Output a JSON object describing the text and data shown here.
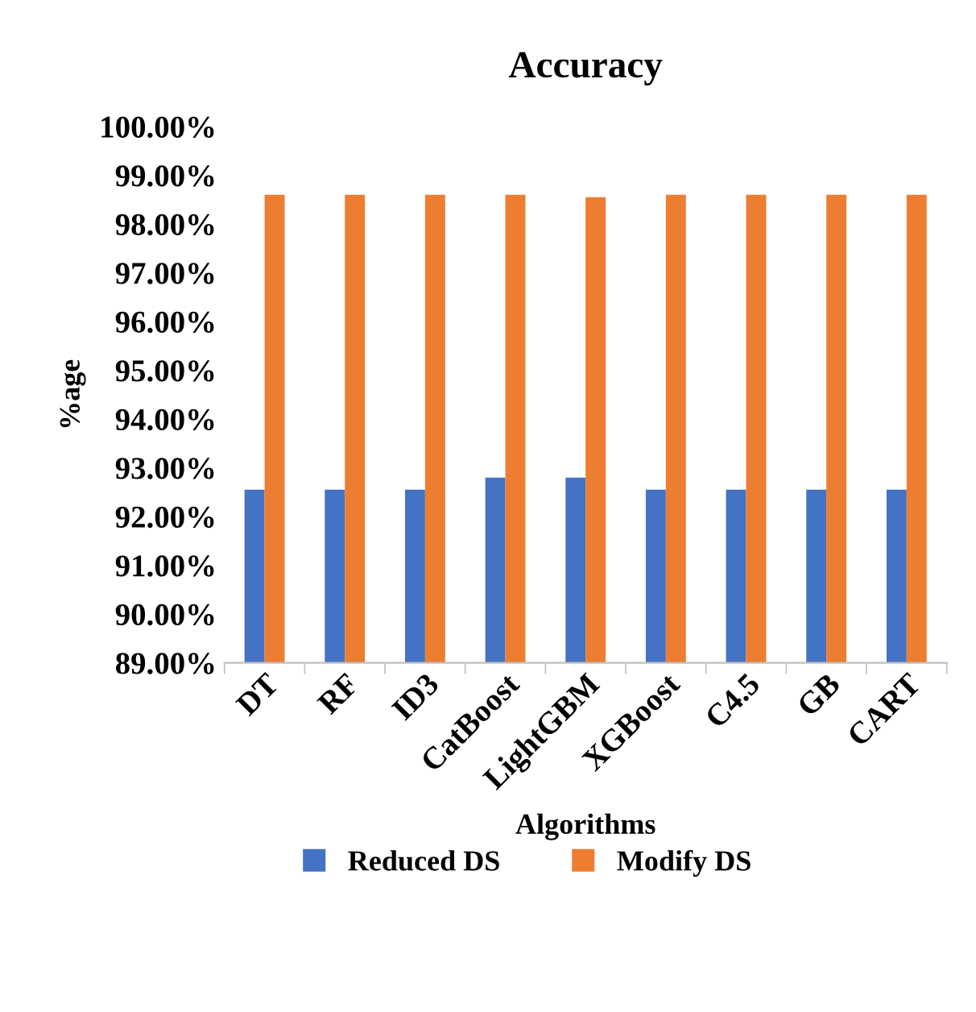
{
  "chart_data": {
    "type": "bar",
    "title": "Accuracy",
    "xlabel": "Algorithms",
    "ylabel": "%age",
    "categories": [
      "DT",
      "RF",
      "ID3",
      "CatBoost",
      "LightGBM",
      "XGBoost",
      "C4.5",
      "GB",
      "CART"
    ],
    "series": [
      {
        "name": "Reduced DS",
        "color": "#4472c4",
        "values": [
          92.55,
          92.55,
          92.55,
          92.8,
          92.8,
          92.55,
          92.55,
          92.55,
          92.55
        ]
      },
      {
        "name": "Modify DS",
        "color": "#ed7d31",
        "values": [
          98.6,
          98.6,
          98.6,
          98.6,
          98.55,
          98.6,
          98.6,
          98.6,
          98.6
        ]
      }
    ],
    "ylim": [
      89,
      100
    ],
    "yticks": [
      {
        "value": 89,
        "label": "89.00%"
      },
      {
        "value": 90,
        "label": "90.00%"
      },
      {
        "value": 91,
        "label": "91.00%"
      },
      {
        "value": 92,
        "label": "92.00%"
      },
      {
        "value": 93,
        "label": "93.00%"
      },
      {
        "value": 94,
        "label": "94.00%"
      },
      {
        "value": 95,
        "label": "95.00%"
      },
      {
        "value": 96,
        "label": "96.00%"
      },
      {
        "value": 97,
        "label": "97.00%"
      },
      {
        "value": 98,
        "label": "98.00%"
      },
      {
        "value": 99,
        "label": "99.00%"
      },
      {
        "value": 100,
        "label": "100.00%"
      }
    ],
    "grid": false,
    "legend": "bottom"
  }
}
